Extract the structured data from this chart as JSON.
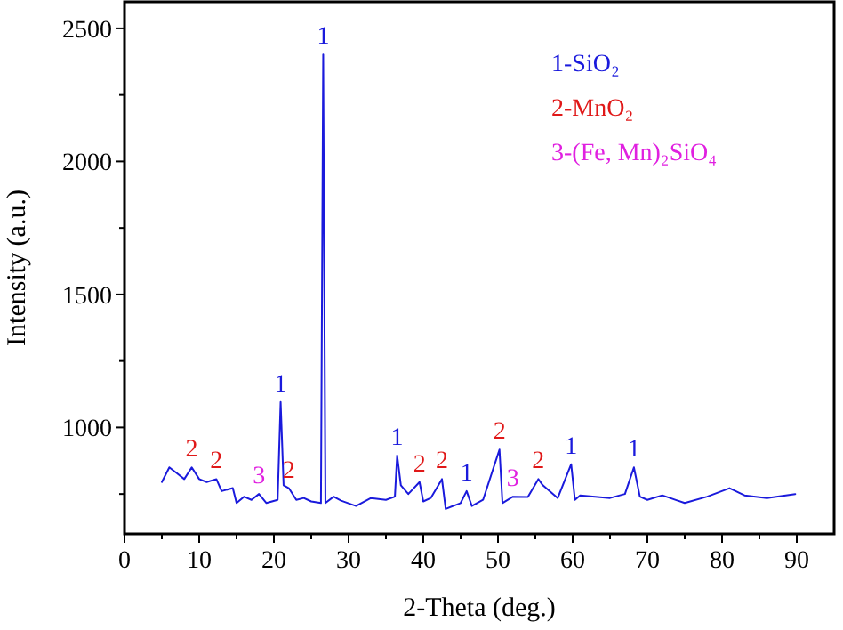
{
  "chart_data": {
    "type": "line",
    "xlabel": "2-Theta (deg.)",
    "ylabel": "Intensity (a.u.)",
    "xlim": [
      0,
      95
    ],
    "ylim": [
      600,
      2600
    ],
    "xticks": [
      0,
      {
        "value": 5,
        "label": null
      },
      10,
      {
        "value": 15,
        "label": null
      },
      20,
      {
        "value": 25,
        "label": null
      },
      30,
      {
        "value": 35,
        "label": null
      },
      40,
      {
        "value": 45,
        "label": null
      },
      50,
      {
        "value": 55,
        "label": null
      },
      60,
      {
        "value": 65,
        "label": null
      },
      70,
      {
        "value": 75,
        "label": null
      },
      80,
      {
        "value": 85,
        "label": null
      },
      90
    ],
    "yticks": [
      {
        "value": 750,
        "label": null
      },
      1000,
      {
        "value": 1250,
        "label": null
      },
      1500,
      {
        "value": 1750,
        "label": null
      },
      2000,
      {
        "value": 2250,
        "label": null
      },
      2500
    ],
    "grid": false,
    "marker": "none",
    "line_style": "solid",
    "series": [
      {
        "color": "#1a1adc",
        "x": [
          5,
          6,
          7,
          8,
          9,
          10,
          11,
          12.3,
          13,
          14.5,
          15,
          16,
          17,
          18,
          19,
          20.5,
          20.9,
          21.3,
          22,
          23,
          24,
          25,
          26.3,
          26.6,
          26.9,
          28,
          29,
          31,
          33,
          35,
          36.2,
          36.5,
          37,
          38,
          39.5,
          40,
          41,
          42.5,
          43,
          45,
          45.8,
          46.5,
          48,
          50.2,
          50.6,
          52,
          54,
          55.4,
          56,
          58,
          59.8,
          60.3,
          61,
          63,
          65,
          67,
          68.2,
          69,
          70,
          72,
          75,
          78,
          81,
          83,
          86,
          89.8
        ],
        "values": [
          795,
          850,
          828,
          806,
          850,
          806,
          795,
          806,
          761,
          772,
          716,
          740,
          728,
          750,
          716,
          728,
          1096,
          783,
          772,
          728,
          735,
          722,
          716,
          2402,
          716,
          740,
          725,
          705,
          735,
          728,
          740,
          895,
          783,
          750,
          795,
          722,
          735,
          806,
          694,
          716,
          761,
          705,
          728,
          917,
          716,
          740,
          739,
          806,
          783,
          735,
          862,
          728,
          745,
          740,
          735,
          750,
          850,
          740,
          728,
          745,
          716,
          740,
          772,
          745,
          735,
          750
        ]
      }
    ],
    "annotations": [
      "1-SiO₂",
      "2-MnO₂",
      "3-(Fe, Mn)₂SiO₄",
      {
        "text": "2",
        "x": 9,
        "y": 850
      },
      {
        "text": "2",
        "x": 12.3,
        "y": 806
      },
      {
        "text": "3",
        "x": 18,
        "y": 750
      },
      {
        "text": "1",
        "x": 20.9,
        "y": 1096
      },
      {
        "text": "2",
        "x": 22,
        "y": 772
      },
      {
        "text": "1",
        "x": 26.6,
        "y": 2402
      },
      {
        "text": "1",
        "x": 36.5,
        "y": 895
      },
      {
        "text": "2",
        "x": 39.5,
        "y": 795
      },
      {
        "text": "2",
        "x": 42.5,
        "y": 806
      },
      {
        "text": "1",
        "x": 45.8,
        "y": 761
      },
      {
        "text": "2",
        "x": 50.2,
        "y": 917
      },
      {
        "text": "3",
        "x": 52,
        "y": 740
      },
      {
        "text": "2",
        "x": 55.4,
        "y": 806
      },
      {
        "text": "1",
        "x": 59.8,
        "y": 862
      },
      {
        "text": "1",
        "x": 68.2,
        "y": 850
      }
    ]
  }
}
